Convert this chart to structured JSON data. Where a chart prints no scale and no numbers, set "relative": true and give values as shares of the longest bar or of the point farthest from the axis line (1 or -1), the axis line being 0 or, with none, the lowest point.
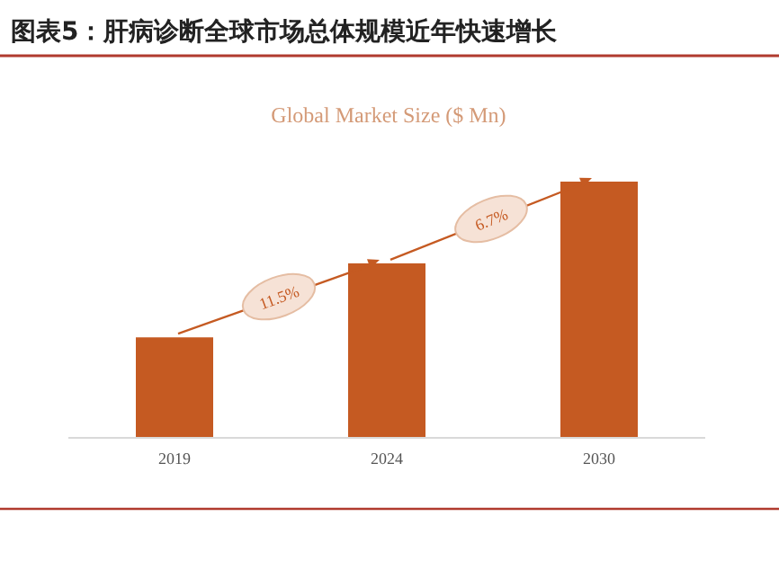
{
  "chart_data": {
    "type": "bar",
    "title": "图表5：肝病诊断全球市场总体规模近年快速增长",
    "subtitle": "Global Market Size ($ Mn)",
    "categories": [
      "2019",
      "2024",
      "2030"
    ],
    "values": [
      0.39,
      0.68,
      1
    ],
    "color": "#c55a22",
    "relative": true,
    "annotations": [
      "11.5%",
      "6.7%"
    ]
  }
}
